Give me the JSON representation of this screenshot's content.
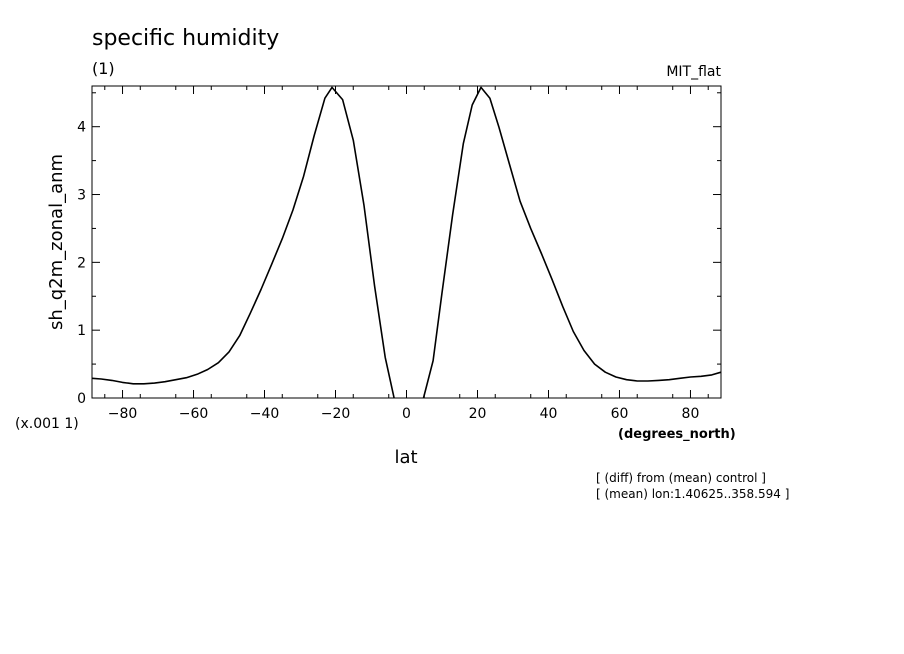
{
  "chart_data": {
    "type": "line",
    "title": "specific humidity",
    "subtitle": "(1)",
    "model_label": "MIT_flat",
    "xlabel": "lat",
    "xunits": "(degrees_north)",
    "ylabel": "sh_q2m_zonal_anm",
    "yscale_label": "(x.001 1)",
    "xlim": [
      -88.6,
      88.6
    ],
    "ylim": [
      0,
      4.6
    ],
    "x_ticks": [
      -80,
      -60,
      -40,
      -20,
      0,
      20,
      40,
      60,
      80
    ],
    "y_ticks": [
      0,
      1,
      2,
      3,
      4
    ],
    "grid": false,
    "annotations": [
      "[ (diff) from (mean) control ]",
      "[ (mean) lon:1.40625..358.594 ]"
    ],
    "series": [
      {
        "x": [
          -88.6,
          -86,
          -83,
          -80,
          -77,
          -74,
          -71,
          -68,
          -65,
          -62,
          -59,
          -56,
          -53,
          -50,
          -47,
          -44,
          -41,
          -38,
          -35,
          -32,
          -29,
          -26,
          -23,
          -21,
          -18,
          -15,
          -12,
          -9,
          -6,
          -3.5
        ],
        "y": [
          0.29,
          0.28,
          0.26,
          0.23,
          0.21,
          0.21,
          0.22,
          0.24,
          0.27,
          0.3,
          0.35,
          0.42,
          0.52,
          0.68,
          0.92,
          1.25,
          1.6,
          1.97,
          2.35,
          2.77,
          3.27,
          3.87,
          4.42,
          4.58,
          4.4,
          3.8,
          2.85,
          1.65,
          0.6,
          0.0
        ]
      },
      {
        "x": [
          4.8,
          7.5,
          10,
          13,
          16,
          18.5,
          21,
          23.5,
          26,
          29,
          32,
          35,
          38,
          41,
          44,
          47,
          50,
          53,
          56,
          59,
          62,
          65,
          68,
          71,
          74,
          77,
          80,
          83,
          86,
          88.6
        ],
        "y": [
          0.0,
          0.55,
          1.55,
          2.7,
          3.75,
          4.32,
          4.58,
          4.42,
          4.0,
          3.45,
          2.9,
          2.5,
          2.13,
          1.75,
          1.35,
          0.98,
          0.7,
          0.5,
          0.38,
          0.31,
          0.27,
          0.25,
          0.25,
          0.26,
          0.27,
          0.29,
          0.31,
          0.32,
          0.34,
          0.38
        ]
      }
    ]
  }
}
